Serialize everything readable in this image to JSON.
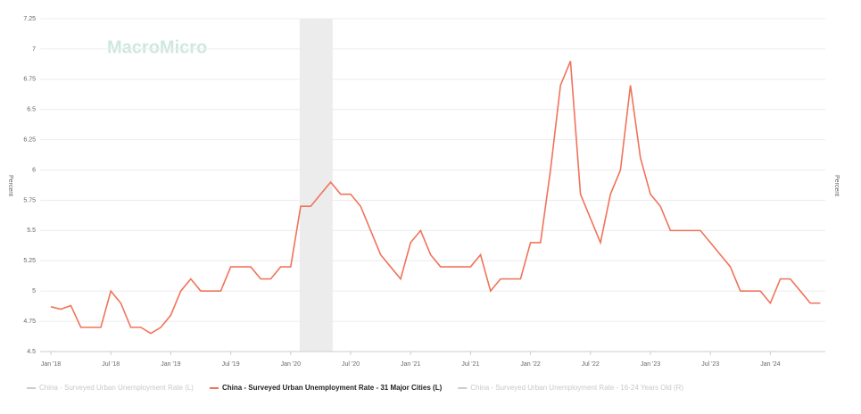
{
  "chart_data": {
    "type": "line",
    "watermark": "MacroMicro",
    "y_label": "Percent",
    "y2_label": "Percent",
    "categories": [
      "Jan '18",
      null,
      null,
      null,
      null,
      null,
      "Jul '18",
      null,
      null,
      null,
      null,
      null,
      "Jan '19",
      null,
      null,
      null,
      null,
      null,
      "Jul '19",
      null,
      null,
      null,
      null,
      null,
      "Jan '20",
      null,
      null,
      null,
      null,
      null,
      "Jul '20",
      null,
      null,
      null,
      null,
      null,
      "Jan '21",
      null,
      null,
      null,
      null,
      null,
      "Jul '21",
      null,
      null,
      null,
      null,
      null,
      "Jan '22",
      null,
      null,
      null,
      null,
      null,
      "Jul '22",
      null,
      null,
      null,
      null,
      null,
      "Jan '23",
      null,
      null,
      null,
      null,
      null,
      "Jul '23",
      null,
      null,
      null,
      null,
      null,
      "Jan '24",
      null,
      null,
      null,
      null,
      null
    ],
    "shaded_span": [
      25,
      28
    ],
    "series": [
      {
        "name": "China - Surveyed Urban Unemployment Rate (L)",
        "color": "#cccccc",
        "hidden": true
      },
      {
        "name": "China - Surveyed Urban Unemployment Rate - 31 Major Cities (L)",
        "color": "#f0735a",
        "values": [
          4.87,
          4.85,
          4.88,
          4.7,
          4.7,
          4.7,
          5.0,
          4.9,
          4.7,
          4.7,
          4.65,
          4.7,
          4.8,
          5.0,
          5.1,
          5.0,
          5.0,
          5.0,
          5.2,
          5.2,
          5.2,
          5.1,
          5.1,
          5.2,
          5.2,
          5.7,
          5.7,
          5.8,
          5.9,
          5.8,
          5.8,
          5.7,
          5.5,
          5.3,
          5.2,
          5.1,
          5.4,
          5.5,
          5.3,
          5.2,
          5.2,
          5.2,
          5.2,
          5.3,
          5.0,
          5.1,
          5.1,
          5.1,
          5.4,
          5.4,
          6.0,
          6.7,
          6.9,
          5.8,
          5.6,
          5.4,
          5.8,
          6.0,
          6.7,
          6.1,
          5.8,
          5.7,
          5.5,
          5.5,
          5.5,
          5.5,
          5.4,
          5.3,
          5.2,
          5.0,
          5.0,
          5.0,
          4.9,
          5.1,
          5.1,
          5.0,
          4.9,
          4.9
        ]
      },
      {
        "name": "China - Surveyed Urban Unemployment Rate - 16-24 Years Old (R)",
        "color": "#cccccc",
        "hidden": true
      }
    ],
    "ylim": [
      4.5,
      7.25
    ],
    "yticks": [
      4.5,
      4.75,
      5,
      5.25,
      5.5,
      5.75,
      6,
      6.25,
      6.5,
      6.75,
      7,
      7.25
    ],
    "grid": true
  }
}
